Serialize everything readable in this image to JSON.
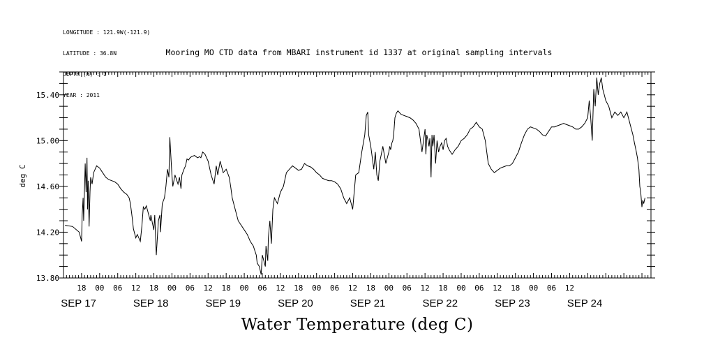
{
  "meta": {
    "longitude": "LONGITUDE : 121.9W(-121.9)",
    "latitude": "LATITUDE : 36.8N",
    "depth": "DEPTH (m) : 1",
    "year": "YEAR : 2011"
  },
  "chart_data": {
    "type": "line",
    "title": "Mooring MO CTD data from MBARI instrument id 1337 at original sampling intervals",
    "xlabel": "Water Temperature (deg C)",
    "ylabel": "deg C",
    "ylim": [
      13.8,
      15.6
    ],
    "yticks": [
      "13.80",
      "14.20",
      "14.60",
      "15.00",
      "15.40"
    ],
    "xlim_hours_from_sep17_00": [
      -12,
      183
    ],
    "hour_tick_labels": [
      "18",
      "00",
      "06",
      "12",
      "18",
      "00",
      "06",
      "12",
      "18",
      "00",
      "06",
      "12",
      "18",
      "00",
      "06",
      "12",
      "18",
      "00",
      "06",
      "12",
      "18",
      "00",
      "06",
      "12",
      "18",
      "00",
      "06",
      "12"
    ],
    "day_labels": [
      "SEP 17",
      "SEP 18",
      "SEP 19",
      "SEP 20",
      "SEP 21",
      "SEP 22",
      "SEP 23",
      "SEP 24"
    ],
    "grid": false,
    "series": [
      {
        "hours": [
          -11.5,
          -9,
          -6.8,
          -6,
          -5.8,
          -5.5,
          -5.3,
          -4.8,
          -4.5,
          -4.2,
          -4,
          -3.8,
          -3.5,
          -3.2,
          -3,
          -2.5,
          -2,
          -1,
          0,
          1,
          2,
          3,
          4,
          5,
          6,
          7,
          8,
          9,
          9.8,
          10.2,
          10.8,
          11.2,
          12,
          12.5,
          13.5,
          14,
          14.5,
          15,
          15.5,
          16,
          16.8,
          17,
          17.5,
          18,
          18.3,
          18.8,
          19.5,
          20,
          20.2,
          20.8,
          21.5,
          22,
          22.5,
          23,
          23.3,
          24,
          24.3,
          25,
          26,
          26.5,
          27,
          27.3,
          28,
          28.5,
          29,
          29.5,
          30,
          30.5,
          31.5,
          32.5,
          33.2,
          33.6,
          34.2,
          35,
          36,
          37,
          38,
          38.7,
          39.2,
          40,
          41,
          42,
          43,
          43.5,
          44,
          45,
          46,
          48,
          49,
          50,
          51,
          52,
          52.3,
          53,
          53.6,
          54,
          55,
          55.2,
          55.8,
          56,
          56.5,
          57,
          57.5,
          58,
          59,
          60,
          61,
          62,
          63,
          64,
          65,
          66,
          67,
          68,
          69,
          70,
          71,
          72,
          73,
          74,
          75,
          76,
          77,
          78,
          79,
          80,
          81,
          82,
          83,
          84,
          85,
          86,
          87,
          88,
          88.5,
          89,
          89.3,
          90,
          90.5,
          91,
          91.5,
          92,
          92.5,
          93,
          93.5,
          94,
          95,
          96,
          96.3,
          96.6,
          97,
          97.3,
          97.6,
          98,
          98.5,
          99,
          100,
          101,
          102,
          103,
          104,
          105,
          106,
          107,
          108,
          108.3,
          108.6,
          109,
          109.3,
          109.6,
          110,
          110.3,
          110.6,
          111,
          111.5,
          112,
          112.5,
          113,
          113.5,
          114,
          114.5,
          115,
          115.5,
          116,
          117,
          118,
          119,
          120,
          121,
          122,
          123,
          124,
          125,
          126,
          127,
          128,
          129,
          130,
          131,
          132,
          133,
          134,
          135,
          136,
          137,
          138,
          139,
          140,
          141,
          142,
          143,
          144,
          145,
          146,
          147,
          148,
          149,
          150,
          151,
          152,
          153,
          154,
          155,
          156,
          157,
          158,
          159,
          160,
          161,
          162,
          162.5,
          163,
          163.5,
          164,
          164.5,
          165,
          165.5,
          166,
          166.5,
          167,
          167.5,
          168,
          169,
          170,
          171,
          172,
          173,
          174,
          175,
          176,
          177,
          177.5,
          178,
          178.5,
          179,
          179.3,
          179.6,
          180,
          180.3,
          180.6,
          181
        ],
        "values": [
          14.26,
          14.25,
          14.2,
          14.12,
          14.35,
          14.5,
          14.3,
          14.8,
          14.55,
          14.85,
          14.4,
          14.65,
          14.25,
          14.55,
          14.68,
          14.62,
          14.72,
          14.78,
          14.76,
          14.72,
          14.68,
          14.66,
          14.65,
          14.64,
          14.62,
          14.58,
          14.55,
          14.53,
          14.5,
          14.45,
          14.33,
          14.23,
          14.15,
          14.18,
          14.12,
          14.25,
          14.42,
          14.4,
          14.43,
          14.38,
          14.3,
          14.35,
          14.28,
          14.22,
          14.35,
          14.0,
          14.3,
          14.35,
          14.2,
          14.45,
          14.5,
          14.6,
          14.75,
          14.68,
          15.03,
          14.7,
          14.6,
          14.7,
          14.62,
          14.68,
          14.58,
          14.7,
          14.75,
          14.78,
          14.84,
          14.83,
          14.85,
          14.86,
          14.87,
          14.85,
          14.86,
          14.85,
          14.9,
          14.88,
          14.82,
          14.7,
          14.62,
          14.78,
          14.7,
          14.82,
          14.72,
          14.75,
          14.68,
          14.6,
          14.5,
          14.4,
          14.3,
          14.22,
          14.18,
          14.12,
          14.08,
          14.0,
          13.93,
          13.9,
          13.83,
          14.0,
          13.9,
          14.08,
          13.95,
          14.15,
          14.3,
          14.1,
          14.4,
          14.5,
          14.45,
          14.55,
          14.6,
          14.72,
          14.75,
          14.78,
          14.76,
          14.74,
          14.75,
          14.8,
          14.78,
          14.77,
          14.75,
          14.72,
          14.7,
          14.67,
          14.66,
          14.65,
          14.65,
          14.64,
          14.62,
          14.58,
          14.5,
          14.45,
          14.5,
          14.4,
          14.7,
          14.72,
          14.9,
          15.05,
          15.22,
          15.25,
          15.05,
          14.95,
          14.85,
          14.75,
          14.9,
          14.7,
          14.65,
          14.82,
          14.88,
          14.95,
          14.8,
          14.9,
          14.95,
          14.92,
          14.98,
          15.0,
          15.05,
          15.2,
          15.24,
          15.26,
          15.23,
          15.22,
          15.21,
          15.2,
          15.18,
          15.15,
          15.1,
          14.9,
          15.1,
          14.88,
          15.05,
          15.0,
          14.95,
          15.02,
          14.68,
          15.05,
          14.95,
          15.05,
          14.8,
          15.0,
          14.9,
          14.95,
          14.98,
          14.92,
          15.0,
          15.02,
          14.95,
          14.92,
          14.88,
          14.92,
          14.95,
          15.0,
          15.02,
          15.05,
          15.1,
          15.12,
          15.16,
          15.12,
          15.1,
          15.0,
          14.8,
          14.75,
          14.72,
          14.74,
          14.76,
          14.77,
          14.78,
          14.78,
          14.8,
          14.85,
          14.9,
          14.98,
          15.05,
          15.1,
          15.12,
          15.11,
          15.1,
          15.08,
          15.05,
          15.04,
          15.08,
          15.12,
          15.12,
          15.13,
          15.14,
          15.15,
          15.14,
          15.13,
          15.12,
          15.1,
          15.1,
          15.12,
          15.15,
          15.2,
          15.35,
          15.2,
          15.0,
          15.45,
          15.3,
          15.55,
          15.4,
          15.5,
          15.55,
          15.45,
          15.4,
          15.35,
          15.3,
          15.2,
          15.25,
          15.22,
          15.25,
          15.2,
          15.25,
          15.15,
          15.05,
          14.98,
          14.92,
          14.85,
          14.75,
          14.6,
          14.55,
          14.42,
          14.48,
          14.45,
          14.5
        ]
      }
    ]
  }
}
